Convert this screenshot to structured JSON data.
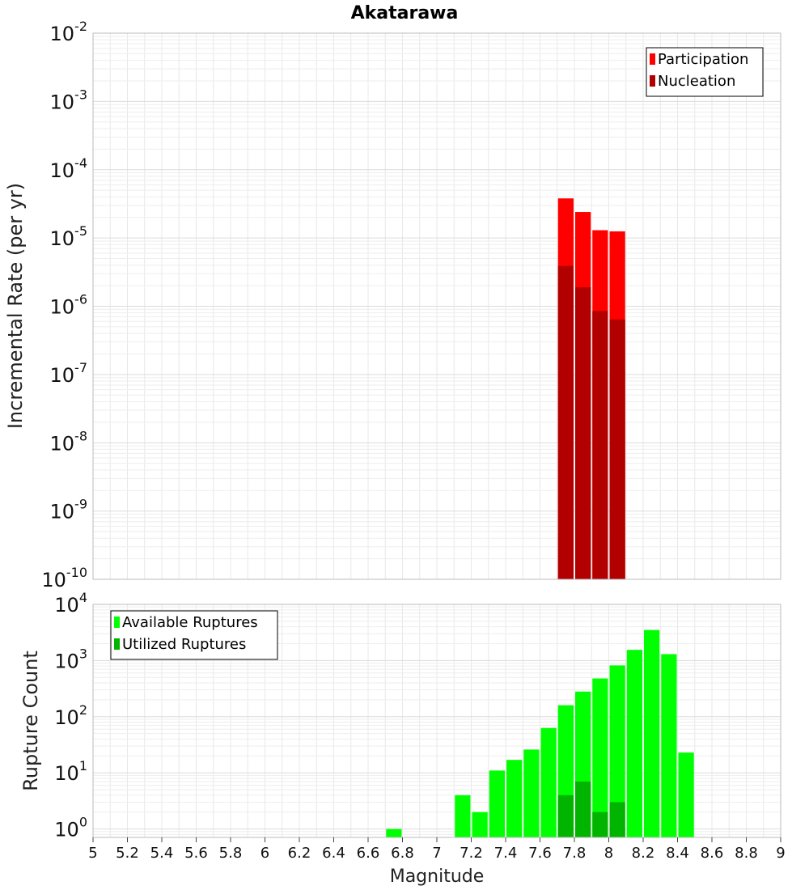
{
  "title": "Akatarawa",
  "colors": {
    "participation": "#ff0000",
    "nucleation": "#b20000",
    "available": "#00ff00",
    "utilized": "#00b400",
    "grid": "#e8e8e8",
    "frame": "#bbbbbb"
  },
  "chart_data": [
    {
      "type": "bar",
      "scale": "log",
      "title": "Akatarawa",
      "ylabel": "Incremental Rate (per yr)",
      "xlabel": "",
      "xlim": [
        5,
        9
      ],
      "ylim_exp": [
        -10,
        -2
      ],
      "y_tick_exponents": [
        -2,
        -3,
        -4,
        -5,
        -6,
        -7,
        -8,
        -9,
        -10
      ],
      "bin_width": 0.1,
      "legend": {
        "position": "top-right",
        "entries": [
          "Participation",
          "Nucleation"
        ]
      },
      "series": [
        {
          "name": "Participation",
          "x": [
            7.75,
            7.85,
            7.95,
            8.05
          ],
          "values": [
            3.8e-05,
            2.4e-05,
            1.3e-05,
            1.25e-05
          ]
        },
        {
          "name": "Nucleation",
          "x": [
            7.75,
            7.85,
            7.95,
            8.05
          ],
          "values": [
            3.9e-06,
            1.9e-06,
            8.5e-07,
            6.4e-07
          ]
        }
      ]
    },
    {
      "type": "bar",
      "scale": "log",
      "ylabel": "Rupture Count",
      "xlabel": "Magnitude",
      "xlim": [
        5,
        9
      ],
      "ylim_exp": [
        -0.15,
        4
      ],
      "y_tick_exponents": [
        0,
        1,
        2,
        3,
        4
      ],
      "bin_width": 0.1,
      "x_ticks": [
        "5",
        "5.2",
        "5.4",
        "5.6",
        "5.8",
        "6",
        "6.2",
        "6.4",
        "6.6",
        "6.8",
        "7",
        "7.2",
        "7.4",
        "7.6",
        "7.8",
        "8",
        "8.2",
        "8.4",
        "8.6",
        "8.8",
        "9"
      ],
      "legend": {
        "position": "top-left",
        "entries": [
          "Available Ruptures",
          "Utilized Ruptures"
        ]
      },
      "series": [
        {
          "name": "Available Ruptures",
          "x": [
            6.75,
            7.15,
            7.25,
            7.35,
            7.45,
            7.55,
            7.65,
            7.75,
            7.85,
            7.95,
            8.05,
            8.15,
            8.25,
            8.35,
            8.45
          ],
          "values": [
            1,
            4,
            2,
            11,
            17,
            26,
            63,
            160,
            280,
            480,
            820,
            1550,
            3500,
            1300,
            23
          ]
        },
        {
          "name": "Utilized Ruptures",
          "x": [
            7.75,
            7.85,
            7.95,
            8.05
          ],
          "values": [
            4,
            7,
            2,
            3
          ]
        }
      ]
    }
  ]
}
